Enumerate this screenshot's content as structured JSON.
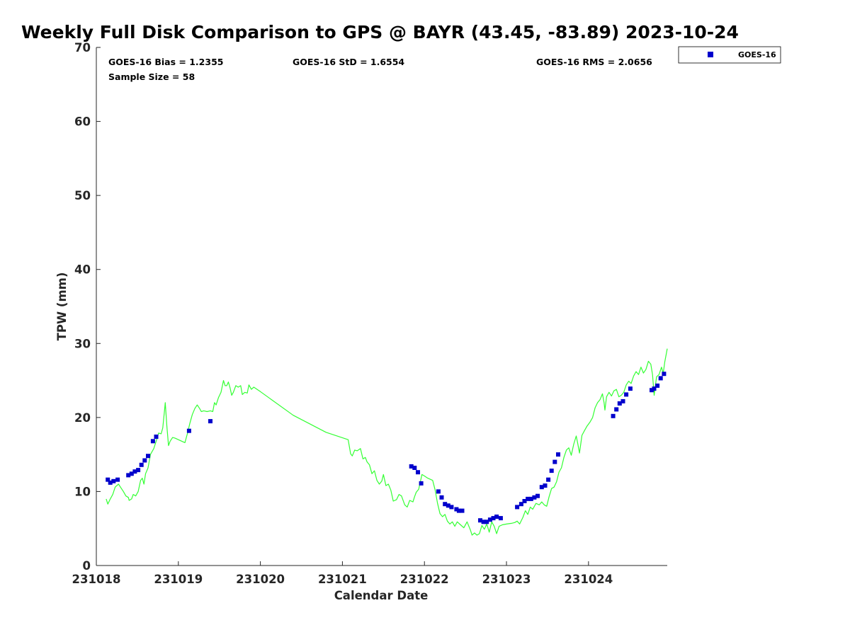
{
  "chart_data": {
    "type": "scatter",
    "title": "Weekly Full Disk Comparison to GPS @ BAYR (43.45, -83.89) 2023-10-24",
    "xlabel": "Calendar Date",
    "ylabel": "TPW (mm)",
    "xlim": [
      0,
      6.96
    ],
    "ylim": [
      0,
      70
    ],
    "x_ticks": [
      {
        "value": 0,
        "label": "231018"
      },
      {
        "value": 1,
        "label": "231019"
      },
      {
        "value": 2,
        "label": "231020"
      },
      {
        "value": 3,
        "label": "231021"
      },
      {
        "value": 4,
        "label": "231022"
      },
      {
        "value": 5,
        "label": "231023"
      },
      {
        "value": 6,
        "label": "231024"
      }
    ],
    "y_ticks": [
      0,
      10,
      20,
      30,
      40,
      50,
      60,
      70
    ],
    "y_tick_labels": [
      "0",
      "10",
      "20",
      "30",
      "40",
      "50",
      "60",
      "70"
    ],
    "stats": {
      "bias": "GOES-16 Bias = 1.2355",
      "std": "GOES-16 StD = 1.6554",
      "rms": "GOES-16 RMS = 2.0656",
      "sample_size": "Sample Size = 58"
    },
    "legend": [
      {
        "name": "GOES-16",
        "color": "#0000cc",
        "marker": "square"
      }
    ],
    "legend_position": "outside-top-right",
    "series": [
      {
        "name": "GOES-16",
        "kind": "scatter",
        "color": "#0000cc",
        "points": [
          [
            0.14,
            11.6
          ],
          [
            0.17,
            11.2
          ],
          [
            0.21,
            11.4
          ],
          [
            0.26,
            11.6
          ],
          [
            0.39,
            12.2
          ],
          [
            0.43,
            12.4
          ],
          [
            0.47,
            12.7
          ],
          [
            0.51,
            12.9
          ],
          [
            0.55,
            13.6
          ],
          [
            0.59,
            14.2
          ],
          [
            0.63,
            14.8
          ],
          [
            0.69,
            16.8
          ],
          [
            0.73,
            17.4
          ],
          [
            1.13,
            18.2
          ],
          [
            1.39,
            19.5
          ],
          [
            3.84,
            13.4
          ],
          [
            3.88,
            13.2
          ],
          [
            3.92,
            12.6
          ],
          [
            3.96,
            11.1
          ],
          [
            4.17,
            10.0
          ],
          [
            4.21,
            9.2
          ],
          [
            4.25,
            8.3
          ],
          [
            4.29,
            8.1
          ],
          [
            4.33,
            7.9
          ],
          [
            4.39,
            7.6
          ],
          [
            4.42,
            7.4
          ],
          [
            4.46,
            7.4
          ],
          [
            4.68,
            6.1
          ],
          [
            4.72,
            5.9
          ],
          [
            4.76,
            5.9
          ],
          [
            4.8,
            6.2
          ],
          [
            4.84,
            6.4
          ],
          [
            4.88,
            6.6
          ],
          [
            4.93,
            6.4
          ],
          [
            5.13,
            7.9
          ],
          [
            5.18,
            8.3
          ],
          [
            5.22,
            8.7
          ],
          [
            5.26,
            9.0
          ],
          [
            5.3,
            9.0
          ],
          [
            5.34,
            9.2
          ],
          [
            5.38,
            9.4
          ],
          [
            5.43,
            10.6
          ],
          [
            5.47,
            10.8
          ],
          [
            5.51,
            11.6
          ],
          [
            5.55,
            12.8
          ],
          [
            5.59,
            14.0
          ],
          [
            5.63,
            15.0
          ],
          [
            6.3,
            20.2
          ],
          [
            6.34,
            21.1
          ],
          [
            6.38,
            21.9
          ],
          [
            6.42,
            22.2
          ],
          [
            6.46,
            23.1
          ],
          [
            6.51,
            23.9
          ],
          [
            6.77,
            23.7
          ],
          [
            6.8,
            23.9
          ],
          [
            6.84,
            24.3
          ],
          [
            6.88,
            25.3
          ],
          [
            6.92,
            25.9
          ]
        ]
      },
      {
        "name": "GPS",
        "kind": "line",
        "color": "#33ff33",
        "points": [
          [
            0.12,
            9.0
          ],
          [
            0.14,
            8.3
          ],
          [
            0.17,
            9.0
          ],
          [
            0.2,
            9.6
          ],
          [
            0.23,
            10.6
          ],
          [
            0.27,
            11.0
          ],
          [
            0.3,
            10.5
          ],
          [
            0.33,
            10.0
          ],
          [
            0.36,
            9.4
          ],
          [
            0.39,
            9.2
          ],
          [
            0.4,
            8.8
          ],
          [
            0.43,
            9.0
          ],
          [
            0.45,
            9.6
          ],
          [
            0.48,
            9.4
          ],
          [
            0.51,
            10.0
          ],
          [
            0.54,
            11.5
          ],
          [
            0.56,
            11.8
          ],
          [
            0.58,
            11.0
          ],
          [
            0.6,
            12.4
          ],
          [
            0.63,
            13.2
          ],
          [
            0.66,
            15.0
          ],
          [
            0.7,
            15.8
          ],
          [
            0.73,
            16.8
          ],
          [
            0.76,
            17.9
          ],
          [
            0.79,
            17.8
          ],
          [
            0.81,
            18.6
          ],
          [
            0.83,
            20.8
          ],
          [
            0.84,
            22.0
          ],
          [
            0.86,
            18.8
          ],
          [
            0.88,
            16.2
          ],
          [
            0.9,
            16.8
          ],
          [
            0.93,
            17.3
          ],
          [
            0.96,
            17.2
          ],
          [
            1.0,
            17.0
          ],
          [
            1.04,
            16.8
          ],
          [
            1.08,
            16.6
          ],
          [
            1.11,
            17.8
          ],
          [
            1.14,
            19.2
          ],
          [
            1.17,
            20.4
          ],
          [
            1.2,
            21.2
          ],
          [
            1.23,
            21.7
          ],
          [
            1.26,
            21.2
          ],
          [
            1.28,
            20.8
          ],
          [
            1.31,
            20.9
          ],
          [
            1.35,
            20.8
          ],
          [
            1.39,
            20.9
          ],
          [
            1.42,
            20.8
          ],
          [
            1.44,
            22.0
          ],
          [
            1.46,
            21.7
          ],
          [
            1.49,
            22.7
          ],
          [
            1.52,
            23.4
          ],
          [
            1.55,
            25.0
          ],
          [
            1.57,
            24.3
          ],
          [
            1.59,
            24.3
          ],
          [
            1.61,
            24.8
          ],
          [
            1.63,
            24.0
          ],
          [
            1.65,
            23.0
          ],
          [
            1.67,
            23.4
          ],
          [
            1.7,
            24.3
          ],
          [
            1.73,
            24.1
          ],
          [
            1.76,
            24.3
          ],
          [
            1.78,
            23.1
          ],
          [
            1.81,
            23.4
          ],
          [
            1.84,
            23.3
          ],
          [
            1.86,
            24.4
          ],
          [
            1.89,
            23.8
          ],
          [
            1.92,
            24.1
          ],
          [
            2.0,
            23.5
          ],
          [
            2.4,
            20.3
          ],
          [
            2.8,
            18.0
          ],
          [
            3.07,
            17.0
          ],
          [
            3.1,
            15.1
          ],
          [
            3.12,
            14.8
          ],
          [
            3.15,
            15.6
          ],
          [
            3.18,
            15.5
          ],
          [
            3.22,
            15.8
          ],
          [
            3.25,
            14.4
          ],
          [
            3.28,
            14.6
          ],
          [
            3.3,
            14.0
          ],
          [
            3.33,
            13.6
          ],
          [
            3.36,
            12.4
          ],
          [
            3.39,
            12.8
          ],
          [
            3.42,
            11.5
          ],
          [
            3.45,
            11.0
          ],
          [
            3.48,
            11.4
          ],
          [
            3.5,
            12.3
          ],
          [
            3.53,
            10.8
          ],
          [
            3.56,
            11.0
          ],
          [
            3.59,
            10.2
          ],
          [
            3.62,
            8.7
          ],
          [
            3.66,
            8.9
          ],
          [
            3.69,
            9.6
          ],
          [
            3.72,
            9.4
          ],
          [
            3.76,
            8.2
          ],
          [
            3.79,
            7.9
          ],
          [
            3.82,
            8.8
          ],
          [
            3.86,
            8.6
          ],
          [
            3.88,
            9.3
          ],
          [
            3.9,
            9.9
          ],
          [
            3.93,
            10.3
          ],
          [
            3.97,
            12.3
          ],
          [
            4.0,
            12.1
          ],
          [
            4.04,
            11.8
          ],
          [
            4.1,
            11.5
          ],
          [
            4.13,
            10.2
          ],
          [
            4.16,
            8.4
          ],
          [
            4.19,
            7.0
          ],
          [
            4.22,
            6.6
          ],
          [
            4.25,
            6.9
          ],
          [
            4.28,
            6.0
          ],
          [
            4.31,
            5.6
          ],
          [
            4.34,
            5.9
          ],
          [
            4.37,
            5.3
          ],
          [
            4.4,
            5.9
          ],
          [
            4.44,
            5.5
          ],
          [
            4.48,
            5.1
          ],
          [
            4.52,
            5.9
          ],
          [
            4.56,
            4.8
          ],
          [
            4.58,
            4.1
          ],
          [
            4.61,
            4.4
          ],
          [
            4.64,
            4.1
          ],
          [
            4.67,
            4.3
          ],
          [
            4.7,
            5.4
          ],
          [
            4.73,
            4.9
          ],
          [
            4.76,
            5.6
          ],
          [
            4.79,
            4.5
          ],
          [
            4.82,
            5.9
          ],
          [
            4.85,
            5.3
          ],
          [
            4.88,
            4.3
          ],
          [
            4.91,
            5.3
          ],
          [
            4.95,
            5.5
          ],
          [
            5.0,
            5.6
          ],
          [
            5.06,
            5.7
          ],
          [
            5.1,
            5.8
          ],
          [
            5.13,
            6.0
          ],
          [
            5.16,
            5.6
          ],
          [
            5.2,
            6.5
          ],
          [
            5.23,
            7.4
          ],
          [
            5.26,
            6.9
          ],
          [
            5.29,
            7.9
          ],
          [
            5.32,
            7.6
          ],
          [
            5.36,
            8.4
          ],
          [
            5.4,
            8.2
          ],
          [
            5.43,
            8.6
          ],
          [
            5.46,
            8.2
          ],
          [
            5.49,
            8.0
          ],
          [
            5.52,
            9.3
          ],
          [
            5.55,
            10.4
          ],
          [
            5.58,
            10.6
          ],
          [
            5.61,
            11.3
          ],
          [
            5.64,
            12.6
          ],
          [
            5.67,
            13.2
          ],
          [
            5.7,
            14.6
          ],
          [
            5.73,
            15.6
          ],
          [
            5.76,
            15.9
          ],
          [
            5.79,
            14.9
          ],
          [
            5.82,
            16.4
          ],
          [
            5.85,
            17.5
          ],
          [
            5.87,
            16.4
          ],
          [
            5.89,
            15.2
          ],
          [
            5.92,
            17.6
          ],
          [
            5.95,
            18.2
          ],
          [
            5.98,
            18.8
          ],
          [
            6.02,
            19.4
          ],
          [
            6.05,
            20.0
          ],
          [
            6.08,
            21.3
          ],
          [
            6.11,
            22.0
          ],
          [
            6.14,
            22.4
          ],
          [
            6.17,
            23.2
          ],
          [
            6.19,
            22.0
          ],
          [
            6.2,
            21.0
          ],
          [
            6.22,
            22.8
          ],
          [
            6.25,
            23.4
          ],
          [
            6.28,
            22.9
          ],
          [
            6.31,
            23.6
          ],
          [
            6.34,
            23.8
          ],
          [
            6.37,
            22.8
          ],
          [
            6.4,
            23.0
          ],
          [
            6.43,
            23.4
          ],
          [
            6.46,
            24.4
          ],
          [
            6.49,
            24.9
          ],
          [
            6.52,
            24.6
          ],
          [
            6.55,
            25.6
          ],
          [
            6.58,
            26.2
          ],
          [
            6.61,
            25.8
          ],
          [
            6.64,
            26.8
          ],
          [
            6.67,
            26.0
          ],
          [
            6.7,
            26.5
          ],
          [
            6.73,
            27.6
          ],
          [
            6.76,
            27.2
          ],
          [
            6.78,
            25.8
          ],
          [
            6.8,
            23.0
          ],
          [
            6.83,
            25.5
          ],
          [
            6.86,
            25.8
          ],
          [
            6.89,
            26.8
          ],
          [
            6.91,
            25.9
          ],
          [
            6.93,
            27.5
          ],
          [
            6.96,
            29.3
          ]
        ]
      }
    ]
  }
}
